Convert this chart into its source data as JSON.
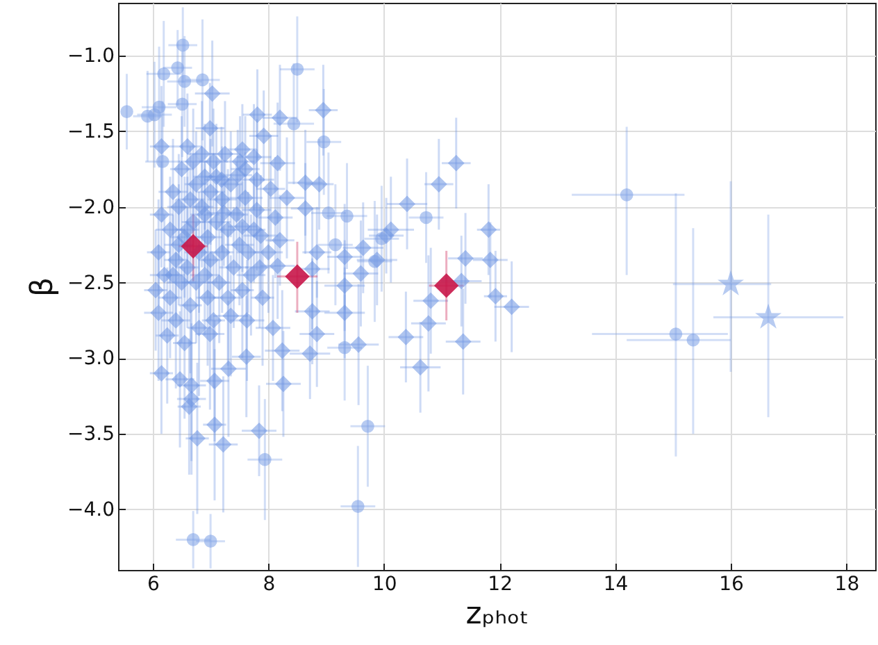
{
  "chart_data": {
    "type": "scatter",
    "xlabel": "zₚₕₒₜ",
    "ylabel": "β",
    "xlim": [
      5.4,
      18.5
    ],
    "ylim": [
      -4.4,
      -0.65
    ],
    "xticks": [
      6,
      8,
      10,
      12,
      14,
      16,
      18
    ],
    "yticks": [
      {
        "value": -4,
        "label": "−4.0"
      },
      -3.5,
      {
        "value": -3,
        "label": "−3.0"
      },
      -2.5,
      {
        "value": -2,
        "label": "−2.0"
      },
      -1.5,
      {
        "value": -1,
        "label": "−1.0"
      }
    ],
    "grid": true,
    "series": [
      {
        "color": "#6f96e3",
        "marker": "diamond",
        "x": [
          7.81,
          8.2,
          7.92,
          8.16,
          7.55,
          7.75,
          6.99,
          7.03,
          6.15,
          8.95,
          8.64,
          8.88,
          8.32,
          8.64,
          10.04,
          9.64,
          9.32,
          9.88,
          8.12,
          7.51,
          7.19,
          7.47,
          7.8,
          8.04,
          7.6,
          7.8,
          7.23,
          7.55,
          7.87,
          8.2,
          8.16,
          8.84,
          8.76,
          9.32,
          9.6,
          6.15,
          6.47,
          6.67,
          6.63,
          6.67,
          6.77,
          7.07,
          7.31,
          7.07,
          7.22,
          7.84,
          7.62,
          8.26,
          8.24,
          8.72,
          8.84,
          9.56,
          9.32,
          7.63,
          8.08,
          7.35,
          6.99,
          8.76,
          11.25,
          10.95,
          10.4,
          10.12,
          11.81,
          11.41,
          11.84,
          11.34,
          10.81,
          10.77,
          11.93,
          12.21,
          10.38,
          11.37,
          10.63,
          6.05,
          6.1,
          6.1,
          6.15,
          6.2,
          6.25,
          6.3,
          6.3,
          6.35,
          6.4,
          6.4,
          6.45,
          6.5,
          6.5,
          6.55,
          6.55,
          6.6,
          6.6,
          6.65,
          6.65,
          6.7,
          6.7,
          6.75,
          6.75,
          6.8,
          6.8,
          6.85,
          6.85,
          6.9,
          6.9,
          6.95,
          6.95,
          7.0,
          7.0,
          7.05,
          7.05,
          7.1,
          7.15,
          7.2,
          7.2,
          7.25,
          7.3,
          7.3,
          7.35,
          7.4,
          7.45,
          7.5,
          7.55,
          7.6,
          7.65,
          7.7,
          7.75,
          7.85,
          7.9,
          8.0,
          6.6,
          6.45,
          6.35,
          6.9,
          7.1
        ],
        "values": [
          -1.39,
          -1.41,
          -1.53,
          -1.71,
          -1.62,
          -1.67,
          -1.48,
          -1.25,
          -1.6,
          -1.36,
          -1.84,
          -1.85,
          -1.94,
          -2.01,
          -2.19,
          -2.27,
          -2.33,
          -2.35,
          -2.07,
          -1.7,
          -1.82,
          -1.79,
          -1.82,
          -1.88,
          -1.94,
          -2.02,
          -2.04,
          -2.13,
          -2.19,
          -2.22,
          -2.39,
          -2.3,
          -2.41,
          -2.52,
          -2.44,
          -3.1,
          -3.14,
          -3.18,
          -3.32,
          -3.27,
          -3.53,
          -3.15,
          -3.07,
          -3.44,
          -3.57,
          -3.48,
          -2.99,
          -3.17,
          -2.95,
          -2.97,
          -2.84,
          -2.91,
          -2.7,
          -2.75,
          -2.8,
          -2.72,
          -2.84,
          -2.69,
          -1.71,
          -1.85,
          -1.98,
          -2.15,
          -2.15,
          -2.34,
          -2.35,
          -2.49,
          -2.62,
          -2.77,
          -2.59,
          -2.66,
          -2.86,
          -2.89,
          -3.06,
          -2.55,
          -2.3,
          -2.7,
          -2.05,
          -2.45,
          -2.85,
          -2.15,
          -2.6,
          -1.9,
          -2.35,
          -2.75,
          -2.0,
          -2.5,
          -1.75,
          -2.2,
          -2.9,
          -1.6,
          -2.4,
          -1.95,
          -2.65,
          -1.7,
          -2.1,
          -2.5,
          -1.85,
          -2.3,
          -2.8,
          -1.65,
          -2.0,
          -2.45,
          -1.8,
          -2.2,
          -2.6,
          -1.9,
          -2.35,
          -1.7,
          -2.75,
          -2.1,
          -2.5,
          -1.95,
          -2.3,
          -1.65,
          -2.15,
          -2.6,
          -1.85,
          -2.4,
          -2.05,
          -2.25,
          -2.55,
          -1.75,
          -2.3,
          -2.45,
          -2.15,
          -2.4,
          -2.6,
          -2.3,
          -2.15,
          -2.25,
          -2.45,
          -2.05,
          -1.8
        ],
        "errors": [
          0.3,
          0.35,
          0.3,
          0.4,
          0.3,
          0.35,
          0.3,
          0.35,
          0.4,
          0.3,
          0.35,
          0.3,
          0.4,
          0.3,
          0.25,
          0.3,
          0.35,
          0.3,
          0.4,
          0.3,
          0.35,
          0.3,
          0.4,
          0.35,
          0.3,
          0.4,
          0.35,
          0.3,
          0.4,
          0.3,
          0.35,
          0.3,
          0.4,
          0.3,
          0.35,
          0.4,
          0.45,
          0.5,
          0.45,
          0.5,
          0.5,
          0.4,
          0.45,
          0.5,
          0.45,
          0.3,
          0.4,
          0.35,
          0.4,
          0.3,
          0.35,
          0.4,
          0.3,
          0.4,
          0.35,
          0.4,
          0.5,
          0.35,
          0.3,
          0.3,
          0.3,
          0.35,
          0.3,
          0.3,
          0.25,
          0.3,
          0.35,
          0.45,
          0.3,
          0.3,
          0.3,
          0.35,
          0.3,
          0.4,
          0.35,
          0.45,
          0.35,
          0.4,
          0.45,
          0.35,
          0.4,
          0.35,
          0.4,
          0.45,
          0.35,
          0.4,
          0.35,
          0.4,
          0.5,
          0.35,
          0.4,
          0.35,
          0.45,
          0.35,
          0.4,
          0.4,
          0.35,
          0.4,
          0.45,
          0.35,
          0.4,
          0.4,
          0.35,
          0.4,
          0.45,
          0.35,
          0.4,
          0.35,
          0.45,
          0.4,
          0.4,
          0.35,
          0.4,
          0.35,
          0.4,
          0.45,
          0.35,
          0.4,
          0.35,
          0.4,
          0.45,
          0.35,
          0.4,
          0.4,
          0.35,
          0.4,
          0.45,
          0.4,
          0.35,
          0.4,
          0.4,
          0.35,
          0.35
        ],
        "xerrors": [
          0.25,
          0.3,
          0.25,
          0.3,
          0.25,
          0.3,
          0.25,
          0.3,
          0.2,
          0.25,
          0.3,
          0.25,
          0.3,
          0.25,
          0.3,
          0.35,
          0.3,
          0.35,
          0.3,
          0.25,
          0.3,
          0.25,
          0.3,
          0.25,
          0.3,
          0.25,
          0.3,
          0.25,
          0.3,
          0.25,
          0.3,
          0.25,
          0.3,
          0.35,
          0.3,
          0.2,
          0.25,
          0.25,
          0.2,
          0.25,
          0.2,
          0.25,
          0.3,
          0.2,
          0.25,
          0.3,
          0.25,
          0.3,
          0.3,
          0.35,
          0.3,
          0.35,
          0.35,
          0.3,
          0.3,
          0.3,
          0.25,
          0.3,
          0.25,
          0.25,
          0.35,
          0.4,
          0.2,
          0.3,
          0.3,
          0.35,
          0.3,
          0.3,
          0.2,
          0.3,
          0.3,
          0.3,
          0.35,
          0.2,
          0.2,
          0.25,
          0.2,
          0.25,
          0.2,
          0.25,
          0.2,
          0.25,
          0.2,
          0.25,
          0.2,
          0.25,
          0.2,
          0.25,
          0.2,
          0.25,
          0.2,
          0.25,
          0.2,
          0.25,
          0.2,
          0.25,
          0.2,
          0.25,
          0.2,
          0.25,
          0.2,
          0.25,
          0.2,
          0.25,
          0.2,
          0.25,
          0.2,
          0.25,
          0.2,
          0.25,
          0.2,
          0.25,
          0.2,
          0.25,
          0.2,
          0.25,
          0.2,
          0.25,
          0.2,
          0.25,
          0.2,
          0.25,
          0.2,
          0.25,
          0.2,
          0.25,
          0.2,
          0.25,
          0.2,
          0.25,
          0.2,
          0.25,
          0.2
        ]
      },
      {
        "color": "#7ea1e6",
        "marker": "circle",
        "x": [
          8.5,
          8.44,
          8.96,
          6.86,
          6.19,
          6.11,
          5.91,
          6.03,
          6.17,
          6.51,
          6.55,
          6.43,
          6.52,
          5.55,
          9.04,
          9.36,
          9.16,
          10.73,
          9.96,
          9.84,
          7.94,
          9.32,
          9.72,
          9.55,
          6.7,
          7.0,
          14.2,
          15.05,
          15.35
        ],
        "values": [
          -1.09,
          -1.45,
          -1.57,
          -1.16,
          -1.12,
          -1.34,
          -1.4,
          -1.39,
          -1.7,
          -1.32,
          -1.17,
          -1.08,
          -0.93,
          -1.37,
          -2.04,
          -2.06,
          -2.25,
          -2.07,
          -2.21,
          -2.36,
          -3.67,
          -2.93,
          -3.45,
          -3.98,
          -4.2,
          -4.21,
          -1.92,
          -2.84,
          -2.88
        ],
        "errors": [
          0.35,
          0.4,
          0.35,
          0.4,
          0.35,
          0.4,
          0.3,
          0.35,
          0.4,
          0.35,
          0.3,
          0.25,
          0.25,
          0.25,
          0.4,
          0.35,
          0.4,
          0.3,
          0.35,
          0.4,
          0.4,
          0.35,
          0.4,
          0.4,
          0.19,
          0.18,
          [
            -2.45,
            -1.47
          ],
          [
            -3.65,
            -1.91
          ],
          [
            -3.5,
            -2.14
          ]
        ],
        "xerrors": [
          0.3,
          0.35,
          0.3,
          0.3,
          0.3,
          0.3,
          0.25,
          0.3,
          0.3,
          0.25,
          0.3,
          0.25,
          0.25,
          null,
          0.3,
          0.35,
          0.3,
          0.3,
          0.3,
          0.3,
          0.3,
          0.3,
          0.3,
          0.3,
          0.3,
          0.25,
          [
            13.25,
            15.2
          ],
          [
            13.6,
            15.95
          ],
          [
            14.2,
            16.0
          ]
        ]
      },
      {
        "color": "#7ea1e6",
        "marker": "star",
        "x": [
          16.0,
          16.65
        ],
        "values": [
          -2.51,
          -2.73
        ],
        "errors": [
          [
            -3.09,
            -1.83
          ],
          [
            -3.39,
            -2.05
          ]
        ],
        "xerrors": [
          [
            15.0,
            16.7
          ],
          [
            15.7,
            17.95
          ]
        ]
      },
      {
        "color": "#c8174a",
        "marker": "diamond",
        "x": [
          6.7,
          8.5,
          11.08
        ],
        "values": [
          -2.26,
          -2.46,
          -2.52
        ],
        "errors": [
          [
            -2.49,
            -2.05
          ],
          [
            -2.7,
            -2.23
          ],
          [
            -2.75,
            -2.29
          ]
        ],
        "xerrors": [
          0.25,
          0.35,
          0.3
        ]
      }
    ]
  }
}
